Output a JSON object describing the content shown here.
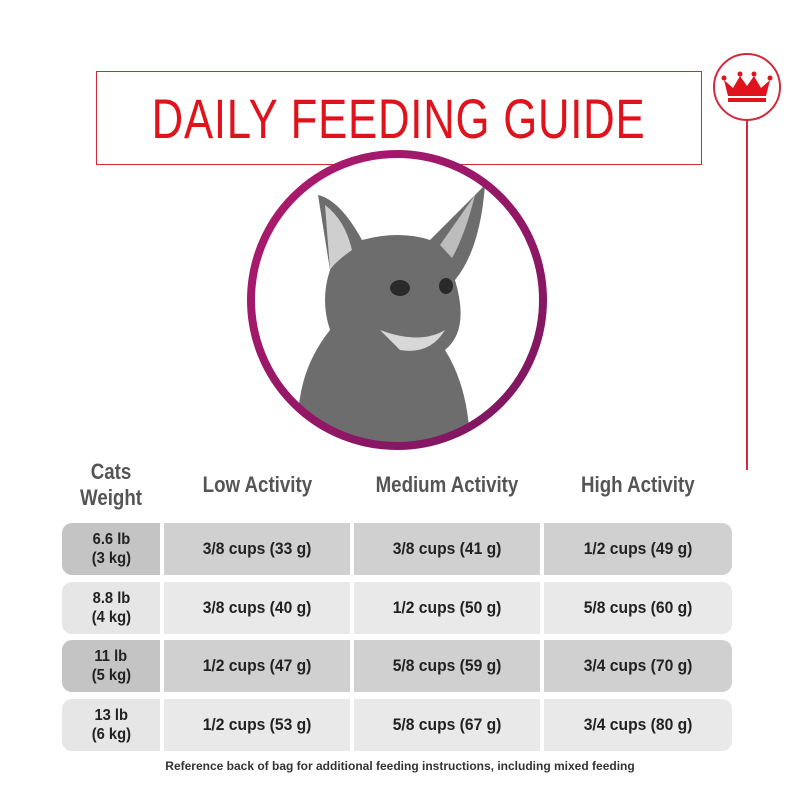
{
  "header": {
    "title": "DAILY FEEDING GUIDE"
  },
  "table": {
    "columns": [
      "Cats Weight",
      "Low Activity",
      "Medium Activity",
      "High Activity"
    ],
    "rows": [
      {
        "weight": "6.6 lb",
        "metric": "(3 kg)",
        "values": [
          "3/8 cups (33 g)",
          "3/8 cups (41 g)",
          "1/2 cups (49 g)"
        ]
      },
      {
        "weight": "8.8 lb",
        "metric": "(4 kg)",
        "values": [
          "3/8 cups (40 g)",
          "1/2 cups (50 g)",
          "5/8 cups (60 g)"
        ]
      },
      {
        "weight": "11 lb",
        "metric": "(5 kg)",
        "values": [
          "1/2 cups (47 g)",
          "5/8 cups (59 g)",
          "3/4 cups (70 g)"
        ]
      },
      {
        "weight": "13 lb",
        "metric": "(6 kg)",
        "values": [
          "1/2 cups (53 g)",
          "5/8 cups (67 g)",
          "3/4 cups (80 g)"
        ]
      }
    ]
  },
  "footnote": "Reference back of bag for additional feeding instructions, including mixed feeding"
}
